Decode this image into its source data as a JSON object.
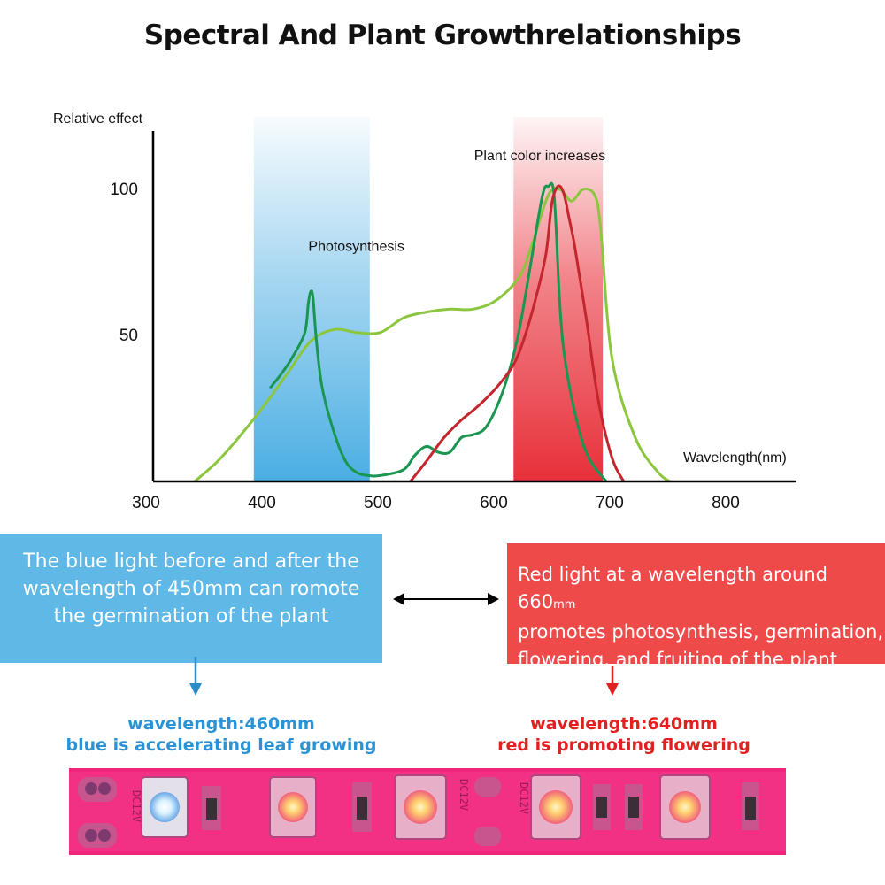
{
  "title": "Spectral And Plant  Growthrelationships",
  "chart_data": {
    "type": "line",
    "ylabel": "Relative effect",
    "xlabel": "Wavelength(nm)",
    "x_ticks": [
      "300",
      "400",
      "500",
      "600",
      "700",
      "800"
    ],
    "y_ticks": [
      "100",
      "50"
    ],
    "xlim": [
      300,
      850
    ],
    "ylim": [
      0,
      115
    ],
    "bands": [
      {
        "name": "blue",
        "from": 393,
        "to": 493,
        "color": "#5ab4e5"
      },
      {
        "name": "red",
        "from": 617,
        "to": 694,
        "color": "#e8303a"
      }
    ],
    "annotations": [
      {
        "text": "Photosynthesis",
        "x": 440,
        "y": 79
      },
      {
        "text": "Plant color increases",
        "x": 583,
        "y": 110
      }
    ],
    "series": [
      {
        "color": "#8cc63f",
        "x": [
          342,
          362,
          382,
          402,
          422,
          442,
          462,
          482,
          502,
          522,
          542,
          562,
          582,
          602,
          622,
          632,
          647,
          657,
          667,
          677,
          687,
          692,
          702,
          722,
          742,
          752
        ],
        "y": [
          0,
          7,
          16,
          26,
          37,
          48,
          52,
          51,
          51,
          56,
          58,
          59,
          59,
          62,
          70,
          80,
          98,
          100,
          96,
          100,
          98,
          87,
          42,
          15,
          3,
          0
        ]
      },
      {
        "color": "#1a9651",
        "x": [
          407,
          417,
          427,
          437,
          440,
          442,
          444,
          447,
          452,
          462,
          472,
          482,
          492,
          502,
          522,
          532,
          542,
          552,
          562,
          572,
          582,
          592,
          602,
          612,
          622,
          632,
          642,
          647,
          652,
          657,
          662,
          672,
          682,
          697
        ],
        "y": [
          32,
          37,
          43,
          51,
          61,
          65,
          63,
          48,
          32,
          17,
          7,
          3,
          2,
          2,
          4,
          9,
          12,
          10,
          10,
          15,
          16,
          18,
          25,
          36,
          52,
          75,
          98,
          101,
          98,
          60,
          40,
          20,
          8,
          0
        ]
      },
      {
        "color": "#c4262e",
        "x": [
          528,
          542,
          557,
          572,
          587,
          602,
          617,
          627,
          637,
          645,
          650,
          655,
          660,
          665,
          670,
          680,
          690,
          702,
          712
        ],
        "y": [
          0,
          7,
          15,
          21,
          26,
          32,
          40,
          50,
          64,
          78,
          95,
          101,
          99,
          90,
          80,
          55,
          28,
          8,
          0
        ]
      }
    ]
  },
  "boxes": {
    "blue": {
      "lines": [
        "The blue light before and after the",
        "wavelength of 450mm can romote",
        "the germination of the plant"
      ]
    },
    "red": {
      "line1": "Red light at a wavelength around 660",
      "unit": "mm",
      "line2": "promotes photosynthesis, germination,",
      "line3": "flowering, and fruiting of the plant"
    }
  },
  "captions": {
    "blue": {
      "line1": "wavelength:460mm",
      "line2": "blue is accelerating leaf growing"
    },
    "red": {
      "line1": "wavelength:640mm",
      "line2": "red is promoting flowering"
    }
  },
  "led_strip": {
    "markings": [
      "DC12V",
      "DC12V",
      "DC12V",
      "DC12V"
    ]
  },
  "colors": {
    "blue_accent": "#5fb8e6",
    "red_accent": "#ef4a4a",
    "strip": "#f0247a"
  }
}
